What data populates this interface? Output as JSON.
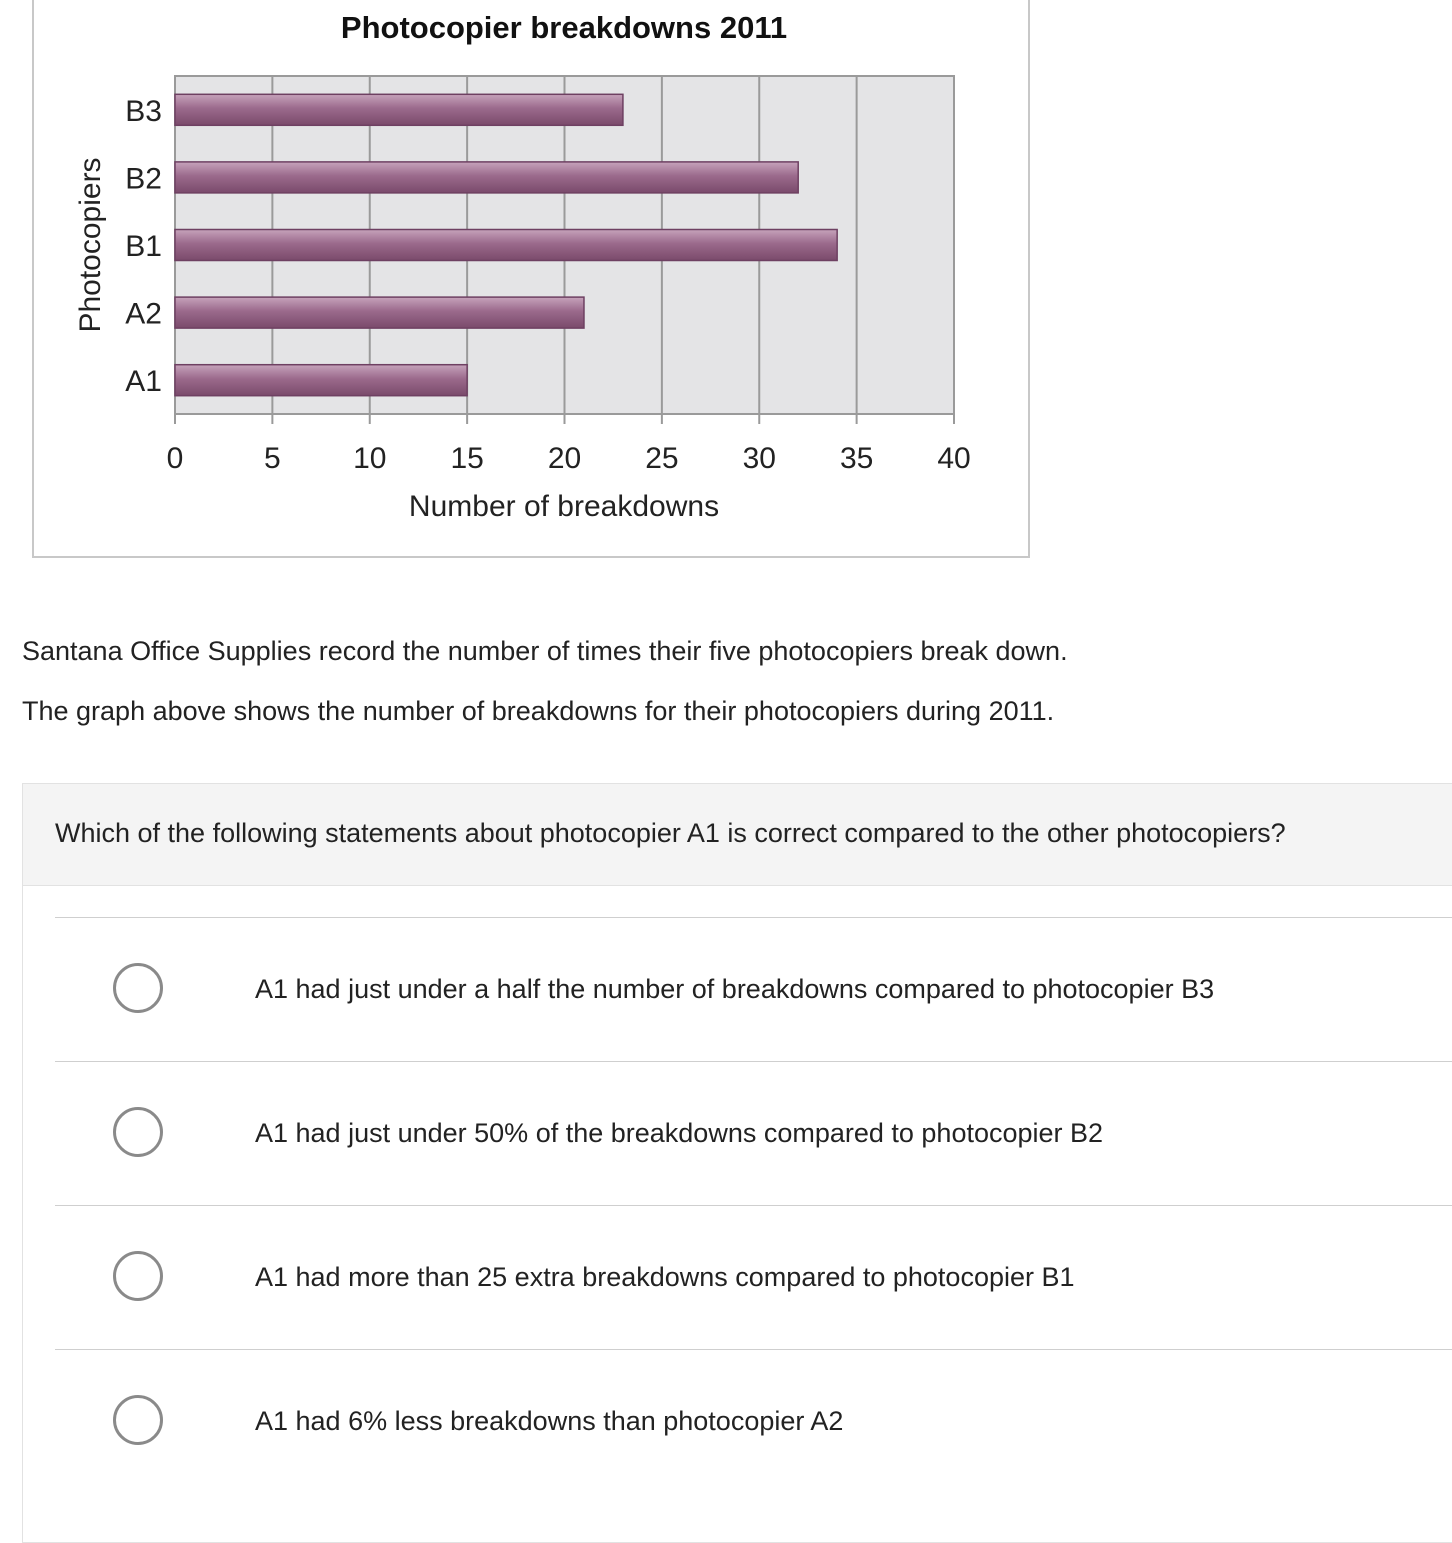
{
  "chart_data": {
    "type": "bar",
    "orientation": "horizontal",
    "title": "Photocopier breakdowns 2011",
    "xlabel": "Number of breakdowns",
    "ylabel": "Photocopiers",
    "categories": [
      "A1",
      "A2",
      "B1",
      "B2",
      "B3"
    ],
    "values": [
      15,
      21,
      34,
      32,
      23
    ],
    "xlim": [
      0,
      40
    ],
    "xticks": [
      0,
      5,
      10,
      15,
      20,
      25,
      30,
      35,
      40
    ],
    "grid": true,
    "bar_color": "#9b6a8c",
    "plot_background": "#e4e4e6"
  },
  "intro": {
    "line1": "Santana Office Supplies record the number of times their five photocopiers break down.",
    "line2": "The graph above shows the number of breakdowns for their photocopiers during 2011."
  },
  "question": {
    "text": "Which of the following statements about photocopier A1 is correct compared to the other photocopiers?",
    "options": [
      {
        "label": "A1 had just under a half the number of breakdowns compared to photocopier B3"
      },
      {
        "label": "A1 had just under 50%  of the breakdowns compared to photocopier B2"
      },
      {
        "label": "A1 had more than 25 extra breakdowns compared to photocopier B1"
      },
      {
        "label": "A1 had 6% less breakdowns than photocopier A2"
      }
    ]
  }
}
